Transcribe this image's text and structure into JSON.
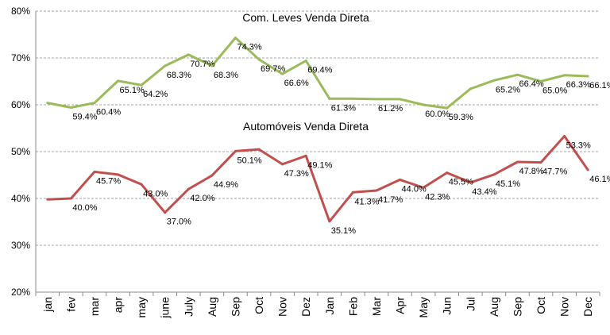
{
  "chart_data": {
    "type": "line",
    "categories": [
      "jan",
      "fev",
      "mar",
      "apr",
      "may",
      "june",
      "July",
      "Aug",
      "Sep",
      "Oct",
      "Nov",
      "Dez",
      "Jan",
      "Feb",
      "Mar",
      "Apr",
      "May",
      "Jun",
      "Jul",
      "Aug",
      "Sep",
      "Oct",
      "Nov",
      "Dec"
    ],
    "ylim": [
      20,
      80
    ],
    "ytick_labels": [
      "20%",
      "30%",
      "40%",
      "50%",
      "60%",
      "70%",
      "80%"
    ],
    "grid": "horizontal dashed",
    "series": [
      {
        "name": "Com. Leves Venda Direta",
        "color": "#9BBB59",
        "values": [
          60.4,
          59.4,
          60.4,
          65.1,
          64.2,
          68.3,
          70.7,
          68.3,
          74.3,
          69.7,
          66.6,
          69.4,
          61.3,
          61.3,
          61.2,
          61.2,
          60.0,
          59.3,
          63.4,
          65.2,
          66.4,
          65.0,
          66.3,
          66.1
        ],
        "labels": [
          "",
          "59.4%",
          "60.4%",
          "65.1%",
          "64.2%",
          "68.3%",
          "70.7%",
          "68.3%",
          "74.3%",
          "69.7%",
          "66.6%",
          "69.4%",
          "61.3%",
          "",
          "61.2%",
          "",
          "60.0%",
          "59.3%",
          "",
          "65.2%",
          "66.4%",
          "65.0%",
          "66.3%",
          "66.1%"
        ]
      },
      {
        "name": "Automóveis Venda Direta",
        "color": "#C0504D",
        "values": [
          39.8,
          40.0,
          45.7,
          45.1,
          43.0,
          37.0,
          42.0,
          44.9,
          50.1,
          50.5,
          47.3,
          49.1,
          35.1,
          41.3,
          41.7,
          44.0,
          42.3,
          45.5,
          43.4,
          45.1,
          47.8,
          47.7,
          53.3,
          46.1
        ],
        "labels": [
          "",
          "40.0%",
          "45.7%",
          "",
          "43.0%",
          "37.0%",
          "42.0%",
          "44.9%",
          "50.1%",
          "",
          "47.3%",
          "49.1%",
          "35.1%",
          "41.3%",
          "41.7%",
          "44.0%",
          "42.3%",
          "45.5%",
          "43.4%",
          "45.1%",
          "47.8%",
          "47.7%",
          "53.3%",
          "46.1%"
        ]
      }
    ]
  }
}
